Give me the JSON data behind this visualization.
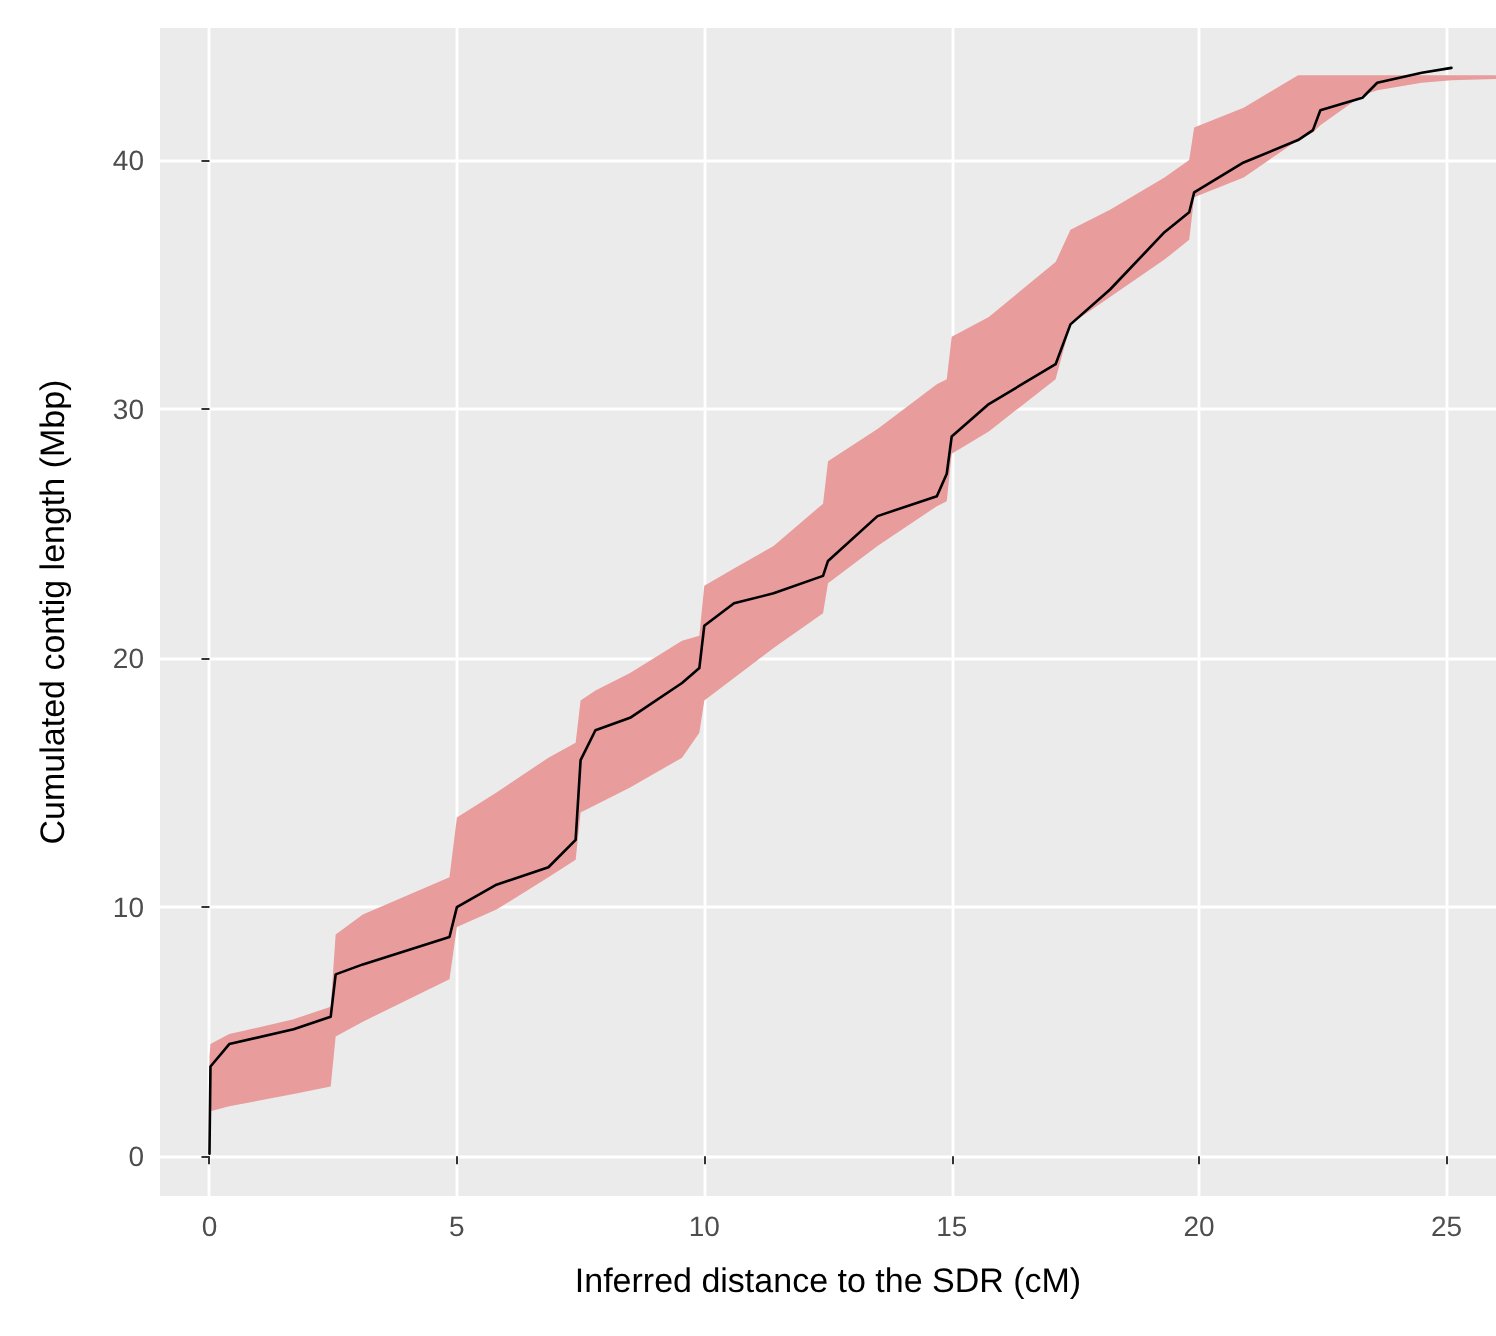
{
  "chart_data": {
    "type": "line",
    "xlabel": "Inferred distance to the SDR (cM)",
    "ylabel": "Cumulated contig length (Mbp)",
    "xlim": [
      -1,
      26
    ],
    "ylim": [
      -1.6,
      45.3
    ],
    "xticks": [
      0,
      5,
      10,
      15,
      20,
      25
    ],
    "yticks": [
      0,
      10,
      20,
      30,
      40
    ],
    "grid": true,
    "marker": "none",
    "line_style": "solid",
    "series": [
      {
        "color": "#000000",
        "x": [
          0,
          0.02,
          0.4,
          1.7,
          2.45,
          2.55,
          3.1,
          4.85,
          5.0,
          5.8,
          6.85,
          7.4,
          7.5,
          7.8,
          8.5,
          9.55,
          9.9,
          10.0,
          10.6,
          11.4,
          12.4,
          12.5,
          13.5,
          14.7,
          14.9,
          15.0,
          15.75,
          17.1,
          17.4,
          18.2,
          19.3,
          19.8,
          19.9,
          20.9,
          22.0,
          22.3,
          22.45,
          23.3,
          23.6,
          24.5,
          25.1,
          26.0
        ],
        "values": [
          0.1,
          3.6,
          4.5,
          5.1,
          5.6,
          7.3,
          7.7,
          8.8,
          10.0,
          10.9,
          11.6,
          12.7,
          15.9,
          17.1,
          17.6,
          19.0,
          19.6,
          21.3,
          22.2,
          22.6,
          23.3,
          23.9,
          25.7,
          26.5,
          27.4,
          28.9,
          30.2,
          31.8,
          33.4,
          34.8,
          37.1,
          37.9,
          38.7,
          39.9,
          40.8,
          41.2,
          42.0,
          42.5,
          43.1,
          43.5,
          43.7,
          null
        ],
        "lower": [
          1.7,
          1.8,
          2.0,
          2.5,
          2.8,
          4.8,
          5.4,
          7.1,
          9.2,
          9.9,
          11.2,
          11.9,
          13.8,
          14.1,
          14.8,
          16.0,
          17.0,
          18.3,
          19.2,
          20.4,
          21.8,
          23.0,
          24.5,
          26.1,
          26.3,
          28.2,
          29.1,
          31.2,
          33.4,
          34.5,
          36.0,
          36.8,
          38.5,
          39.3,
          40.8,
          41.1,
          41.4,
          42.6,
          42.8,
          43.1,
          43.2,
          43.25
        ],
        "upper": [
          4.0,
          4.5,
          4.9,
          5.5,
          6.0,
          8.9,
          9.7,
          11.2,
          13.6,
          14.6,
          16.0,
          16.6,
          18.3,
          18.7,
          19.4,
          20.7,
          20.9,
          22.9,
          23.6,
          24.5,
          26.2,
          27.9,
          29.2,
          31.0,
          31.2,
          32.9,
          33.7,
          35.9,
          37.2,
          38.0,
          39.3,
          40.0,
          41.3,
          42.1,
          43.4,
          43.4,
          43.4,
          43.4,
          43.4,
          43.4,
          43.4,
          43.4
        ]
      }
    ]
  }
}
